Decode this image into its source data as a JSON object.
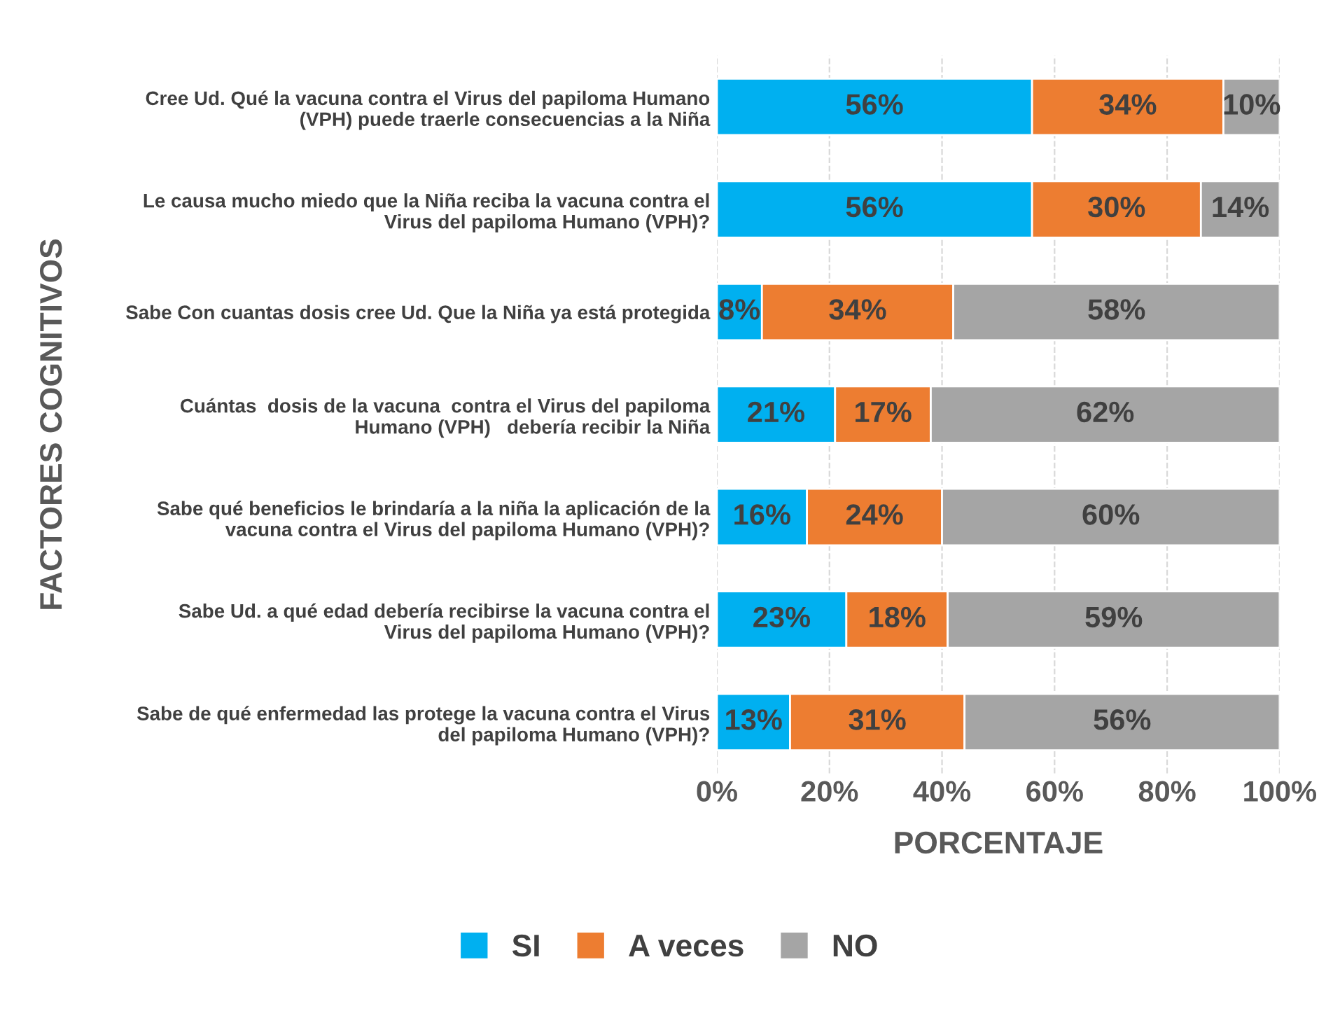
{
  "chart_data": {
    "type": "bar",
    "orientation": "horizontal",
    "stacked": true,
    "categories": [
      "Cree Ud. Qué la vacuna contra el Virus del papiloma Humano\n(VPH) puede traerle consecuencias a la Niña",
      "Le causa mucho miedo que la Niña reciba la vacuna contra el\nVirus del papiloma Humano (VPH)?",
      "Sabe Con cuantas dosis cree Ud. Que la Niña ya está protegida",
      "Cuántas  dosis de la vacuna  contra el Virus del papiloma\nHumano (VPH)   debería recibir la Niña",
      "Sabe qué beneficios le brindaría a la niña la aplicación de la\nvacuna contra el Virus del papiloma Humano (VPH)?",
      "Sabe Ud. a qué edad debería recibirse la vacuna contra el\nVirus del papiloma Humano (VPH)?",
      "Sabe de qué enfermedad las protege la vacuna contra el Virus\ndel papiloma Humano (VPH)?"
    ],
    "series": [
      {
        "name": "SI",
        "color": "#00b0f0",
        "values": [
          56,
          56,
          8,
          21,
          16,
          23,
          13
        ],
        "value_labels": [
          "56%",
          "56%",
          "8%",
          "21%",
          "16%",
          "23%",
          "13%"
        ]
      },
      {
        "name": "A veces",
        "color": "#ed7d31",
        "values": [
          34,
          30,
          34,
          17,
          24,
          18,
          31
        ],
        "value_labels": [
          "34%",
          "30%",
          "34%",
          "17%",
          "24%",
          "18%",
          "31%"
        ]
      },
      {
        "name": "NO",
        "color": "#a5a5a5",
        "values": [
          10,
          14,
          58,
          62,
          60,
          59,
          56
        ],
        "value_labels": [
          "10%",
          "14%",
          "58%",
          "62%",
          "60%",
          "59%",
          "56%"
        ]
      }
    ],
    "xlim": [
      0,
      100
    ],
    "xticks": [
      {
        "value": 0,
        "label": "0%"
      },
      {
        "value": 20,
        "label": "20%"
      },
      {
        "value": 40,
        "label": "40%"
      },
      {
        "value": 60,
        "label": "60%"
      },
      {
        "value": 80,
        "label": "80%"
      },
      {
        "value": 100,
        "label": "100%"
      }
    ],
    "xlabel": "PORCENTAJE",
    "ylabel": "FACTORES COGNITIVOS",
    "grid": "x",
    "legend": "bottom"
  }
}
